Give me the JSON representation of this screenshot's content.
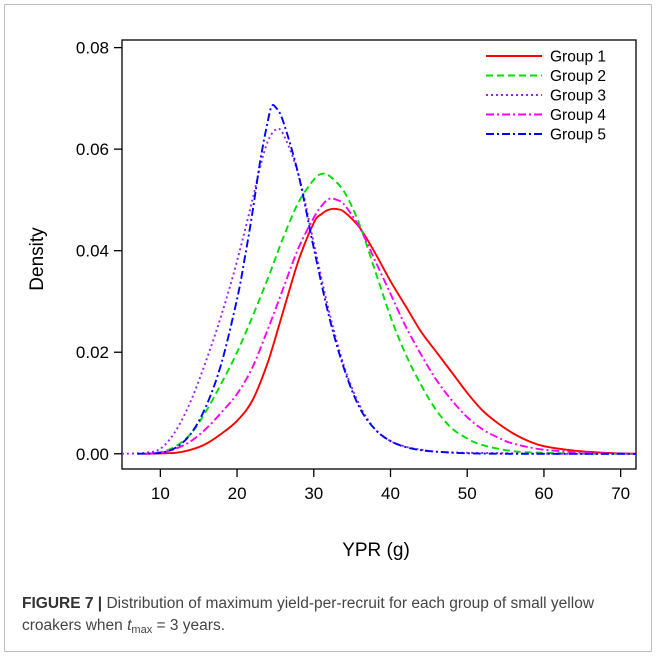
{
  "figure": {
    "caption_label": "FIGURE 7 |",
    "caption_text_1": " Distribution of maximum yield-per-recruit for each group of small yellow croakers when ",
    "caption_var": "t",
    "caption_sub": "max",
    "caption_text_2": " = 3 years."
  },
  "chart_data": {
    "type": "line",
    "title": "",
    "xlabel": "YPR (g)",
    "ylabel": "Density",
    "xlim": [
      5,
      72
    ],
    "ylim": [
      0,
      0.08
    ],
    "xticks": [
      10,
      20,
      30,
      40,
      50,
      60,
      70
    ],
    "yticks": [
      0.0,
      0.02,
      0.04,
      0.06,
      0.08
    ],
    "ytick_labels": [
      "0.00",
      "0.02",
      "0.04",
      "0.06",
      "0.08"
    ],
    "grid": false,
    "legend_position": "top-right",
    "series": [
      {
        "name": "Group 1",
        "color": "#ff0000",
        "dash": "solid",
        "x": [
          8,
          12,
          14,
          16,
          18,
          20,
          22,
          24,
          26,
          28,
          30,
          31,
          32,
          33,
          34,
          36,
          38,
          40,
          42,
          44,
          46,
          48,
          50,
          52,
          54,
          56,
          58,
          60,
          64,
          68,
          72
        ],
        "y": [
          0.0,
          0.0002,
          0.0008,
          0.002,
          0.004,
          0.0065,
          0.0105,
          0.018,
          0.028,
          0.038,
          0.0455,
          0.0472,
          0.0481,
          0.0482,
          0.0476,
          0.0445,
          0.0395,
          0.034,
          0.029,
          0.024,
          0.02,
          0.016,
          0.012,
          0.0085,
          0.006,
          0.004,
          0.0025,
          0.0015,
          0.0006,
          0.0002,
          0.0
        ]
      },
      {
        "name": "Group 2",
        "color": "#00e000",
        "dash": "dashed",
        "x": [
          8,
          10,
          12,
          14,
          16,
          18,
          20,
          22,
          24,
          26,
          28,
          30,
          31,
          32,
          34,
          36,
          38,
          40,
          42,
          44,
          46,
          48,
          50,
          52,
          56,
          60,
          66,
          72
        ],
        "y": [
          0.0,
          0.0003,
          0.0015,
          0.004,
          0.0085,
          0.014,
          0.02,
          0.027,
          0.0345,
          0.0425,
          0.0495,
          0.054,
          0.0551,
          0.0548,
          0.0515,
          0.045,
          0.036,
          0.027,
          0.0195,
          0.0135,
          0.0085,
          0.005,
          0.003,
          0.0017,
          0.0005,
          0.0002,
          0.0,
          0.0
        ]
      },
      {
        "name": "Group 3",
        "color": "#a020f0",
        "dash": "dotted",
        "x": [
          5,
          8,
          10,
          12,
          14,
          16,
          18,
          20,
          22,
          23,
          24,
          25,
          26,
          28,
          30,
          32,
          34,
          36,
          38,
          40,
          42,
          44,
          46,
          50,
          56,
          62,
          72
        ],
        "y": [
          0.0,
          0.0002,
          0.001,
          0.0045,
          0.0105,
          0.0185,
          0.0275,
          0.038,
          0.05,
          0.0565,
          0.0615,
          0.0638,
          0.063,
          0.055,
          0.0415,
          0.028,
          0.017,
          0.0095,
          0.0048,
          0.0025,
          0.0014,
          0.0008,
          0.0004,
          0.0002,
          0.0001,
          0.0,
          0.0
        ]
      },
      {
        "name": "Group 4",
        "color": "#ff00ff",
        "dash": "dashdot",
        "x": [
          8,
          10,
          12,
          14,
          16,
          18,
          20,
          22,
          24,
          26,
          28,
          30,
          31,
          32,
          33,
          34,
          36,
          38,
          40,
          42,
          44,
          46,
          48,
          50,
          52,
          54,
          56,
          60,
          66,
          72
        ],
        "y": [
          0.0,
          0.0002,
          0.001,
          0.0025,
          0.005,
          0.0082,
          0.0118,
          0.017,
          0.0245,
          0.0325,
          0.0405,
          0.0465,
          0.0488,
          0.0502,
          0.05,
          0.049,
          0.0445,
          0.038,
          0.0315,
          0.025,
          0.0195,
          0.0145,
          0.0105,
          0.0072,
          0.0048,
          0.0032,
          0.002,
          0.0008,
          0.0002,
          0.0
        ]
      },
      {
        "name": "Group 5",
        "color": "#0000ff",
        "dash": "dashdot",
        "x": [
          7,
          10,
          12,
          14,
          16,
          18,
          20,
          21,
          22,
          23,
          24,
          24.5,
          25,
          26,
          28,
          30,
          32,
          34,
          36,
          38,
          40,
          42,
          44,
          46,
          50,
          56,
          62,
          72
        ],
        "y": [
          0.0,
          0.0002,
          0.0012,
          0.004,
          0.0095,
          0.018,
          0.0305,
          0.0385,
          0.0475,
          0.0575,
          0.0655,
          0.0684,
          0.0683,
          0.0655,
          0.055,
          0.0405,
          0.027,
          0.0165,
          0.009,
          0.0048,
          0.0025,
          0.0013,
          0.0007,
          0.0004,
          0.0001,
          0.0,
          0.0,
          0.0
        ]
      }
    ]
  }
}
